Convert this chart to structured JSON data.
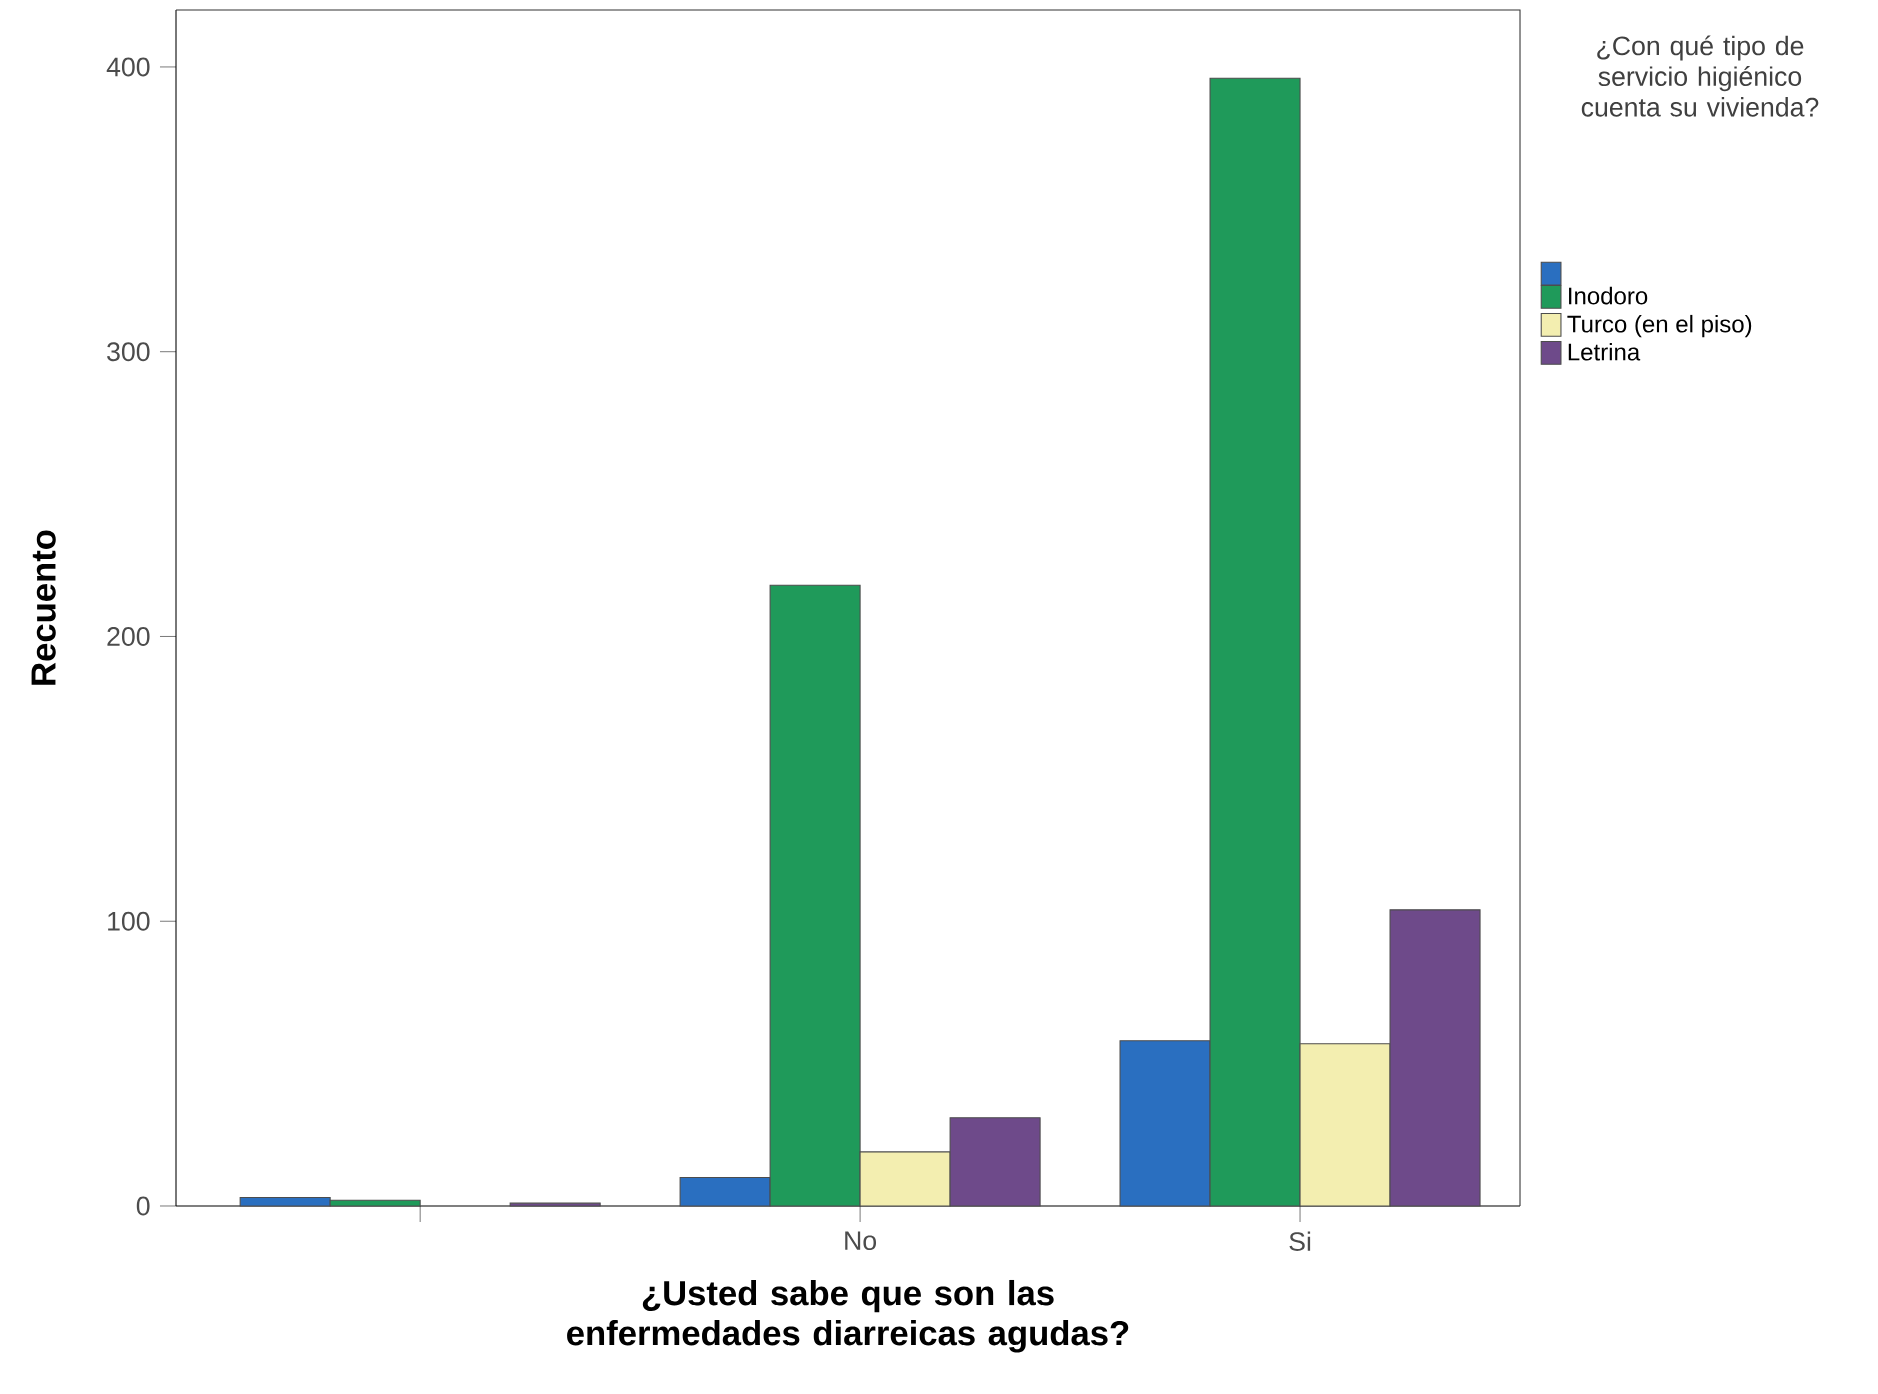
{
  "chart_data": {
    "type": "bar",
    "xlabel": "¿Usted sabe que son las enfermedades diarreicas agudas?",
    "ylabel": "Recuento",
    "legend_title": "¿Con qué tipo de servicio higiénico cuenta su vivienda?",
    "categories": [
      null,
      "No",
      "Si"
    ],
    "series": [
      {
        "color": "#2a6fc0",
        "values": [
          3,
          10,
          58
        ]
      },
      {
        "name": "Inodoro",
        "color": "#1f9a5a",
        "values": [
          2,
          218,
          396
        ]
      },
      {
        "name": "Turco (en el piso)",
        "color": "#f3eeb0",
        "values": [
          null,
          19,
          57
        ]
      },
      {
        "name": "Letrina",
        "color": "#6e4a8a",
        "values": [
          1,
          31,
          104
        ]
      }
    ],
    "ylim": [
      0,
      420
    ],
    "yticks": [
      0,
      100,
      200,
      300,
      400
    ],
    "grid": false,
    "legend": "right"
  }
}
